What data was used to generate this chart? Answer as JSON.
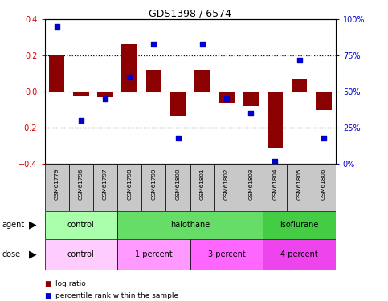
{
  "title": "GDS1398 / 6574",
  "samples": [
    "GSM61779",
    "GSM61796",
    "GSM61797",
    "GSM61798",
    "GSM61799",
    "GSM61800",
    "GSM61801",
    "GSM61802",
    "GSM61803",
    "GSM61804",
    "GSM61805",
    "GSM61806"
  ],
  "log_ratio": [
    0.2,
    -0.02,
    -0.03,
    0.265,
    0.12,
    -0.13,
    0.12,
    -0.06,
    -0.08,
    -0.31,
    0.07,
    -0.1
  ],
  "percentile_rank": [
    95,
    30,
    45,
    60,
    83,
    18,
    83,
    45,
    35,
    2,
    72,
    18
  ],
  "bar_color": "#8B0000",
  "dot_color": "#0000CD",
  "ylim_left": [
    -0.4,
    0.4
  ],
  "ylim_right": [
    0,
    100
  ],
  "yticks_left": [
    -0.4,
    -0.2,
    0.0,
    0.2,
    0.4
  ],
  "yticks_right": [
    0,
    25,
    50,
    75,
    100
  ],
  "ytick_labels_right": [
    "0%",
    "25%",
    "50%",
    "75%",
    "100%"
  ],
  "hlines_dotted": [
    0.2,
    -0.2
  ],
  "zero_line_color": "#FF6666",
  "dotted_line_color": "#000000",
  "tick_label_color_left": "#CC0000",
  "tick_label_color_right": "#0000CC",
  "agent_groups": [
    {
      "label": "control",
      "start": 0,
      "end": 3,
      "color": "#AAFFAA"
    },
    {
      "label": "halothane",
      "start": 3,
      "end": 9,
      "color": "#66DD66"
    },
    {
      "label": "isoflurane",
      "start": 9,
      "end": 12,
      "color": "#44CC44"
    }
  ],
  "dose_groups": [
    {
      "label": "control",
      "start": 0,
      "end": 3,
      "color": "#FFCCFF"
    },
    {
      "label": "1 percent",
      "start": 3,
      "end": 6,
      "color": "#FF99FF"
    },
    {
      "label": "3 percent",
      "start": 6,
      "end": 9,
      "color": "#FF66FF"
    },
    {
      "label": "4 percent",
      "start": 9,
      "end": 12,
      "color": "#EE44EE"
    }
  ],
  "legend_items": [
    {
      "label": "log ratio",
      "color": "#8B0000"
    },
    {
      "label": "percentile rank within the sample",
      "color": "#0000CD"
    }
  ],
  "sample_box_color": "#C8C8C8"
}
